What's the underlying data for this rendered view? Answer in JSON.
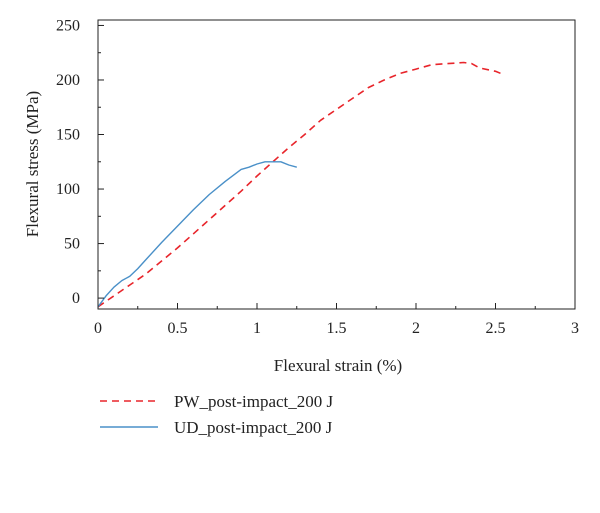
{
  "chart_data": {
    "type": "line",
    "xlabel": "Flexural strain (%)",
    "ylabel": "Flexural stress (MPa)",
    "xlim": [
      0,
      3
    ],
    "ylim": [
      -10,
      255
    ],
    "xticks": [
      0,
      0.5,
      1,
      1.5,
      2,
      2.5,
      3
    ],
    "xtick_labels": [
      "0",
      "0.5",
      "1",
      "1.5",
      "2",
      "2.5",
      "3"
    ],
    "yticks": [
      0,
      50,
      100,
      150,
      200,
      250
    ],
    "ytick_labels": [
      "0",
      "50",
      "100",
      "150",
      "200",
      "250"
    ],
    "grid": false,
    "legend_position": "bottom-left, below plot",
    "series": [
      {
        "name": "PW_post-impact_200 J",
        "color": "#e8252b",
        "dash": "dashed",
        "x": [
          0,
          0.1,
          0.2,
          0.3,
          0.4,
          0.5,
          0.6,
          0.7,
          0.8,
          0.9,
          1.0,
          1.1,
          1.2,
          1.3,
          1.4,
          1.5,
          1.6,
          1.7,
          1.8,
          1.9,
          2.0,
          2.1,
          2.2,
          2.3,
          2.35,
          2.4,
          2.5,
          2.55
        ],
        "y": [
          -8,
          2,
          12,
          22,
          34,
          46,
          59,
          72,
          85,
          98,
          112,
          125,
          138,
          150,
          163,
          173,
          183,
          193,
          200,
          206,
          210,
          214,
          215,
          216,
          215,
          211,
          208,
          205
        ]
      },
      {
        "name": "UD_post-impact_200 J",
        "color": "#4a90c8",
        "dash": "solid",
        "x": [
          0,
          0.05,
          0.1,
          0.15,
          0.2,
          0.25,
          0.3,
          0.4,
          0.5,
          0.6,
          0.7,
          0.8,
          0.9,
          0.95,
          1.0,
          1.05,
          1.1,
          1.15,
          1.2,
          1.25
        ],
        "y": [
          -8,
          2,
          10,
          16,
          20,
          27,
          35,
          51,
          66,
          81,
          95,
          107,
          118,
          120,
          123,
          125,
          125,
          125,
          122,
          120
        ]
      }
    ]
  }
}
